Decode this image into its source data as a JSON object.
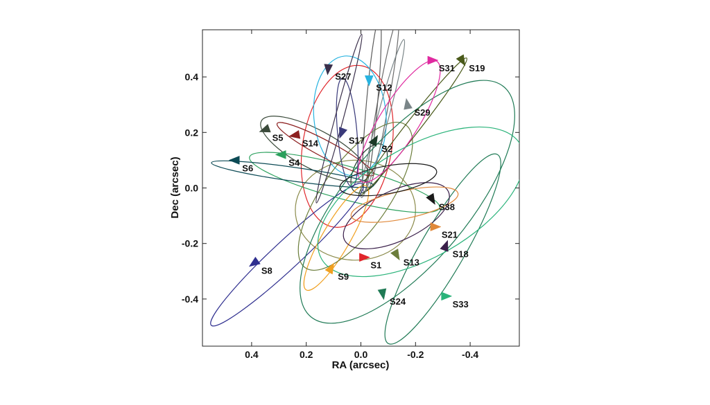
{
  "chart_data": {
    "type": "scatter",
    "title": "",
    "xlabel": "RA (arcsec)",
    "ylabel": "Dec (arcsec)",
    "xlim": [
      0.58,
      -0.58
    ],
    "ylim": [
      -0.57,
      0.57
    ],
    "x_ticks": [
      0.4,
      0.2,
      0.0,
      -0.2,
      -0.4
    ],
    "x_tick_labels": [
      "0.4",
      "0.2",
      "0.0",
      "-0.2",
      "-0.4"
    ],
    "y_ticks": [
      -0.4,
      -0.2,
      0.0,
      0.2,
      0.4
    ],
    "y_tick_labels": [
      "-0.4",
      "-0.2",
      "0.0",
      "0.2",
      "0.4"
    ],
    "grid": false,
    "series": [
      {
        "name": "S1",
        "color": "#e0262b",
        "marker": {
          "x": -0.01,
          "y": -0.25,
          "angle": 0
        },
        "orbit": {
          "cx": 0.05,
          "cy": 0.15,
          "a": 0.3,
          "b": 0.16,
          "rot": -80
        }
      },
      {
        "name": "S2",
        "color": "#1c3a28",
        "marker": {
          "x": -0.05,
          "y": 0.17,
          "angle": 60
        },
        "orbit": {
          "cx": -0.03,
          "cy": 0.07,
          "a": 0.1,
          "b": 0.05,
          "rot": -60
        }
      },
      {
        "name": "S4",
        "color": "#2aa05c",
        "marker": {
          "x": 0.29,
          "y": 0.12,
          "angle": 180
        },
        "orbit": {
          "cx": 0.06,
          "cy": 0.02,
          "a": 0.36,
          "b": 0.06,
          "rot": 15
        }
      },
      {
        "name": "S5",
        "color": "#3a4a3a",
        "marker": {
          "x": 0.35,
          "y": 0.21,
          "angle": 200
        },
        "orbit": {
          "cx": 0.17,
          "cy": 0.14,
          "a": 0.22,
          "b": 0.07,
          "rot": 28
        }
      },
      {
        "name": "S6",
        "color": "#0c4a55",
        "marker": {
          "x": 0.46,
          "y": 0.1,
          "angle": 180
        },
        "orbit": {
          "cx": 0.25,
          "cy": 0.05,
          "a": 0.3,
          "b": 0.025,
          "rot": 8
        }
      },
      {
        "name": "S8",
        "color": "#2f2f8f",
        "marker": {
          "x": 0.39,
          "y": -0.27,
          "angle": 215
        },
        "orbit": {
          "cx": 0.27,
          "cy": -0.24,
          "a": 0.38,
          "b": 0.05,
          "rot": -43
        }
      },
      {
        "name": "S9",
        "color": "#f0a020",
        "marker": {
          "x": 0.11,
          "y": -0.29,
          "angle": 60
        },
        "orbit": {
          "cx": 0.09,
          "cy": -0.18,
          "a": 0.22,
          "b": 0.05,
          "rot": -60
        }
      },
      {
        "name": "S12",
        "color": "#27b3e0",
        "marker": {
          "x": -0.03,
          "y": 0.39,
          "angle": 270
        },
        "orbit": {
          "cx": 0.04,
          "cy": 0.26,
          "a": 0.22,
          "b": 0.13,
          "rot": -95
        }
      },
      {
        "name": "S13",
        "color": "#6b7d3a",
        "marker": {
          "x": -0.13,
          "y": -0.24,
          "angle": 300
        },
        "orbit": {
          "cx": 0.02,
          "cy": -0.03,
          "a": 0.32,
          "b": 0.12,
          "rot": -55
        }
      },
      {
        "name": "S14",
        "color": "#8c1f1f",
        "marker": {
          "x": 0.24,
          "y": 0.19,
          "angle": 190
        },
        "orbit": {
          "cx": 0.13,
          "cy": 0.14,
          "a": 0.2,
          "b": 0.03,
          "rot": 28
        }
      },
      {
        "name": "S17",
        "color": "#3a3a7a",
        "marker": {
          "x": 0.07,
          "y": 0.2,
          "angle": 250
        },
        "orbit": {
          "cx": 0.05,
          "cy": 0.2,
          "a": 0.2,
          "b": 0.035,
          "rot": -95
        }
      },
      {
        "name": "S18",
        "color": "#3a1f4a",
        "marker": {
          "x": -0.31,
          "y": -0.21,
          "angle": 70
        },
        "orbit": {
          "cx": -0.13,
          "cy": -0.1,
          "a": 0.21,
          "b": 0.09,
          "rot": -25
        }
      },
      {
        "name": "S19",
        "color": "#4a5a1a",
        "marker": {
          "x": -0.37,
          "y": 0.46,
          "angle": 300
        },
        "orbit": {
          "cx": -0.19,
          "cy": 0.22,
          "a": 0.32,
          "b": 0.025,
          "rot": -52
        }
      },
      {
        "name": "S21",
        "color": "#e0883a",
        "marker": {
          "x": -0.27,
          "y": -0.14,
          "angle": 0
        },
        "orbit": {
          "cx": -0.16,
          "cy": -0.06,
          "a": 0.2,
          "b": 0.05,
          "rot": -12
        }
      },
      {
        "name": "S24",
        "color": "#1f7a55",
        "marker": {
          "x": -0.08,
          "y": -0.38,
          "angle": 280
        },
        "orbit": {
          "cx": -0.17,
          "cy": -0.05,
          "a": 0.55,
          "b": 0.22,
          "rot": -50
        }
      },
      {
        "name": "S27",
        "color": "#3a2f4a",
        "marker": {
          "x": 0.12,
          "y": 0.43,
          "angle": 265
        },
        "orbit": {
          "cx": 0.08,
          "cy": 0.25,
          "a": 0.32,
          "b": 0.015,
          "rot": -75
        }
      },
      {
        "name": "S29",
        "color": "#7a8588",
        "marker": {
          "x": -0.17,
          "y": 0.3,
          "angle": 100
        },
        "orbit": {
          "cx": -0.08,
          "cy": 0.25,
          "a": 0.3,
          "b": 0.02,
          "rot": -75
        }
      },
      {
        "name": "S31",
        "color": "#e02aa0",
        "marker": {
          "x": -0.26,
          "y": 0.46,
          "angle": 0
        },
        "orbit": {
          "cx": -0.14,
          "cy": 0.24,
          "a": 0.26,
          "b": 0.07,
          "rot": -58
        }
      },
      {
        "name": "S33",
        "color": "#2ab37a",
        "marker": {
          "x": -0.31,
          "y": -0.39,
          "angle": 0
        },
        "orbit": {
          "cx": -0.22,
          "cy": -0.05,
          "a": 0.42,
          "b": 0.2,
          "rot": -30
        }
      },
      {
        "name": "S38",
        "color": "#1a1a1a",
        "marker": {
          "x": -0.26,
          "y": -0.04,
          "angle": 300
        },
        "orbit": {
          "cx": -0.1,
          "cy": 0.03,
          "a": 0.18,
          "b": 0.05,
          "rot": -10
        }
      }
    ],
    "extra_orbits": [
      {
        "color": "#8a8a4a",
        "cx": 0.02,
        "cy": -0.08,
        "a": 0.22,
        "b": 0.18,
        "rot": 0
      },
      {
        "color": "#6a6a6a",
        "cx": -0.08,
        "cy": 0.3,
        "a": 0.32,
        "b": 0.02,
        "rot": -80
      },
      {
        "color": "#5a5a5a",
        "cx": -0.04,
        "cy": 0.3,
        "a": 0.32,
        "b": 0.02,
        "rot": -85
      },
      {
        "color": "#1f7a55",
        "cx": -0.3,
        "cy": -0.22,
        "a": 0.4,
        "b": 0.08,
        "rot": -60
      }
    ]
  }
}
